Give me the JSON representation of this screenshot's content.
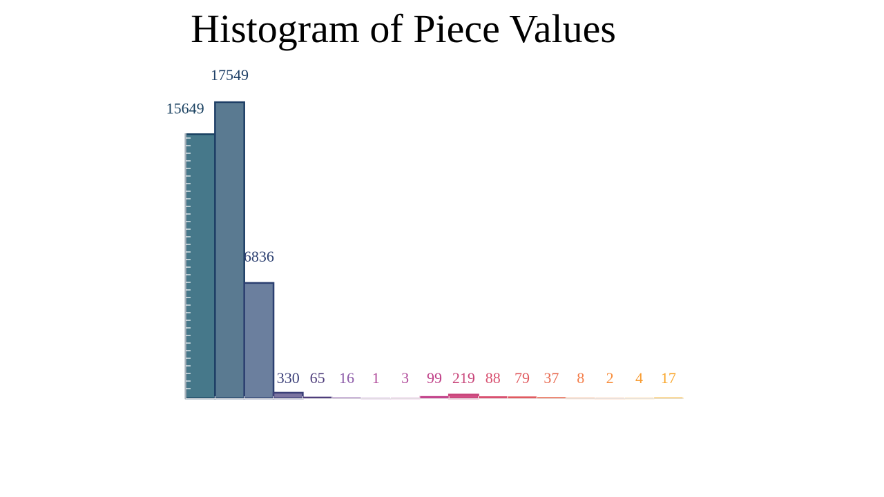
{
  "chart_data": {
    "type": "bar",
    "title": "Histogram of Piece Values",
    "xlabel": "",
    "ylabel": "",
    "ylim": [
      0,
      17549
    ],
    "grid": false,
    "values": [
      15649,
      17549,
      6836,
      330,
      65,
      16,
      1,
      3,
      99,
      219,
      88,
      79,
      37,
      8,
      2,
      4,
      17
    ],
    "value_labels": [
      "15649",
      "17549",
      "6836",
      "330",
      "65",
      "16",
      "1",
      "3",
      "99",
      "219",
      "88",
      "79",
      "37",
      "8",
      "2",
      "4",
      "17"
    ],
    "colors": [
      "#46788a",
      "#5a7a91",
      "#6b7f9e",
      "#7b74a0",
      "#7e6aa6",
      "#9b6cb0",
      "#b06db4",
      "#b856a6",
      "#c94b96",
      "#d34f86",
      "#de5276",
      "#e65f66",
      "#ef6b56",
      "#f47c48",
      "#f78c3a",
      "#f89b30",
      "#f9a62a"
    ],
    "edge_colors": [
      "#173f5f",
      "#1e3f66",
      "#2b3f70",
      "#3b3f78",
      "#4d3c7a",
      "#8c5aa8",
      "#c9a6d2",
      "#d7a6cf",
      "#c04088",
      "#c8457a",
      "#d84f6f",
      "#e05a5f",
      "#e8694f",
      "#f6b38a",
      "#f9c2a0",
      "#fbd19a",
      "#f6b12a"
    ]
  }
}
